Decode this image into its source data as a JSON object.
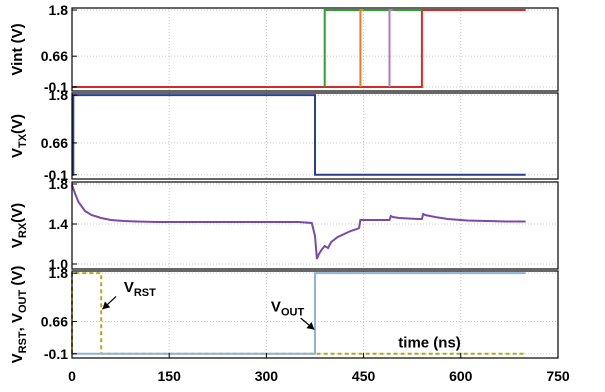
{
  "chart_data": {
    "type": "line",
    "x_axis": {
      "label": "time (ns)",
      "ticks": [
        "0",
        "150",
        "300",
        "450",
        "600",
        "750"
      ],
      "range": [
        0,
        750
      ]
    },
    "panels": [
      {
        "name": "vint",
        "ylabel": [
          {
            "t": "Vint (V)"
          }
        ],
        "yticks": [
          "1.8",
          "0.66",
          "-0.1"
        ],
        "ylim": [
          -0.2,
          1.85
        ],
        "ytick_values": [
          1.8,
          0.66,
          -0.1
        ],
        "series": [
          {
            "color": "#d42a2a",
            "x": [
              0,
              540,
              540,
              700
            ],
            "y": [
              -0.1,
              -0.1,
              1.8,
              1.8
            ]
          },
          {
            "color": "#2aa32a",
            "x": [
              390,
              390,
              540
            ],
            "y": [
              -0.1,
              1.8,
              1.8
            ]
          },
          {
            "color": "#f07a1e",
            "x": [
              445,
              445,
              450
            ],
            "y": [
              -0.1,
              1.8,
              1.8
            ]
          },
          {
            "color": "#b07ac0",
            "x": [
              490,
              490,
              495
            ],
            "y": [
              -0.1,
              1.8,
              1.8
            ]
          }
        ]
      },
      {
        "name": "vtx",
        "ylabel": [
          {
            "t": "V"
          },
          {
            "t": "TX",
            "sub": true
          },
          {
            "t": "(V)"
          }
        ],
        "yticks": [
          "1.8",
          "0.66",
          "-0.1"
        ],
        "ylim": [
          -0.2,
          1.85
        ],
        "ytick_values": [
          1.8,
          0.66,
          -0.1
        ],
        "series": [
          {
            "color": "#2a3f8f",
            "x": [
              0,
              2,
              2,
              375,
              375,
              700
            ],
            "y": [
              -0.1,
              -0.1,
              1.8,
              1.8,
              -0.1,
              -0.1
            ]
          }
        ]
      },
      {
        "name": "vrx",
        "ylabel": [
          {
            "t": "V"
          },
          {
            "t": "RX",
            "sub": true
          },
          {
            "t": "(V)"
          }
        ],
        "yticks": [
          "1.8",
          "1.4",
          "1.0"
        ],
        "ylim": [
          0.95,
          1.82
        ],
        "ytick_values": [
          1.8,
          1.4,
          1.0
        ],
        "series": [
          {
            "color": "#7b4aa8",
            "x": [
              0,
              5,
              10,
              20,
              30,
              45,
              60,
              80,
              100,
              130,
              160,
              200,
              250,
              300,
              350,
              370,
              375,
              378,
              381,
              385,
              390,
              395,
              400,
              410,
              420,
              430,
              440,
              443,
              445,
              450,
              460,
              475,
              490,
              492,
              495,
              505,
              520,
              535,
              540,
              542,
              545,
              560,
              580,
              610,
              640,
              670,
              700
            ],
            "y": [
              1.79,
              1.7,
              1.62,
              1.53,
              1.49,
              1.46,
              1.44,
              1.43,
              1.425,
              1.42,
              1.42,
              1.42,
              1.42,
              1.42,
              1.42,
              1.41,
              1.28,
              1.05,
              1.1,
              1.14,
              1.18,
              1.16,
              1.22,
              1.27,
              1.3,
              1.33,
              1.35,
              1.36,
              1.44,
              1.44,
              1.44,
              1.44,
              1.44,
              1.48,
              1.47,
              1.46,
              1.455,
              1.45,
              1.45,
              1.5,
              1.49,
              1.47,
              1.45,
              1.435,
              1.43,
              1.425,
              1.425
            ]
          }
        ]
      },
      {
        "name": "vrst_vout",
        "ylabel": [
          {
            "t": "V"
          },
          {
            "t": "RST",
            "sub": true
          },
          {
            "t": ", V"
          },
          {
            "t": "OUT",
            "sub": true
          },
          {
            "t": " (V)"
          }
        ],
        "yticks": [
          "1.8",
          "0.66",
          "-0.1"
        ],
        "ylim": [
          -0.2,
          1.85
        ],
        "ytick_values": [
          1.8,
          0.66,
          -0.1
        ],
        "series": [
          {
            "name": "V_RST",
            "color": "#b7a51a",
            "dashed": true,
            "x": [
              0,
              0,
              45,
              45,
              375,
              375,
              700
            ],
            "y": [
              -0.1,
              1.8,
              1.8,
              -0.1,
              -0.1,
              -0.1,
              -0.1
            ]
          },
          {
            "name": "V_OUT",
            "color": "#8fb3d9",
            "dashed": false,
            "x": [
              0,
              375,
              375,
              700
            ],
            "y": [
              -0.1,
              -0.1,
              1.8,
              1.8
            ]
          }
        ],
        "annotations": [
          {
            "parts": [
              {
                "t": "V"
              },
              {
                "t": "RST",
                "sub": true
              }
            ],
            "text_x": 80,
            "text_y": 1.35,
            "arrow_from": [
              68,
              1.25
            ],
            "arrow_to": [
              47,
              0.95
            ]
          },
          {
            "parts": [
              {
                "t": "V"
              },
              {
                "t": "OUT",
                "sub": true
              }
            ],
            "text_x": 307,
            "text_y": 0.9,
            "arrow_from": [
              353,
              0.74
            ],
            "arrow_to": [
              374,
              0.47
            ]
          },
          {
            "parts": [
              {
                "t": "time (ns)"
              }
            ],
            "text_x": 600,
            "text_y": 0.05
          }
        ]
      }
    ],
    "grid": true
  }
}
